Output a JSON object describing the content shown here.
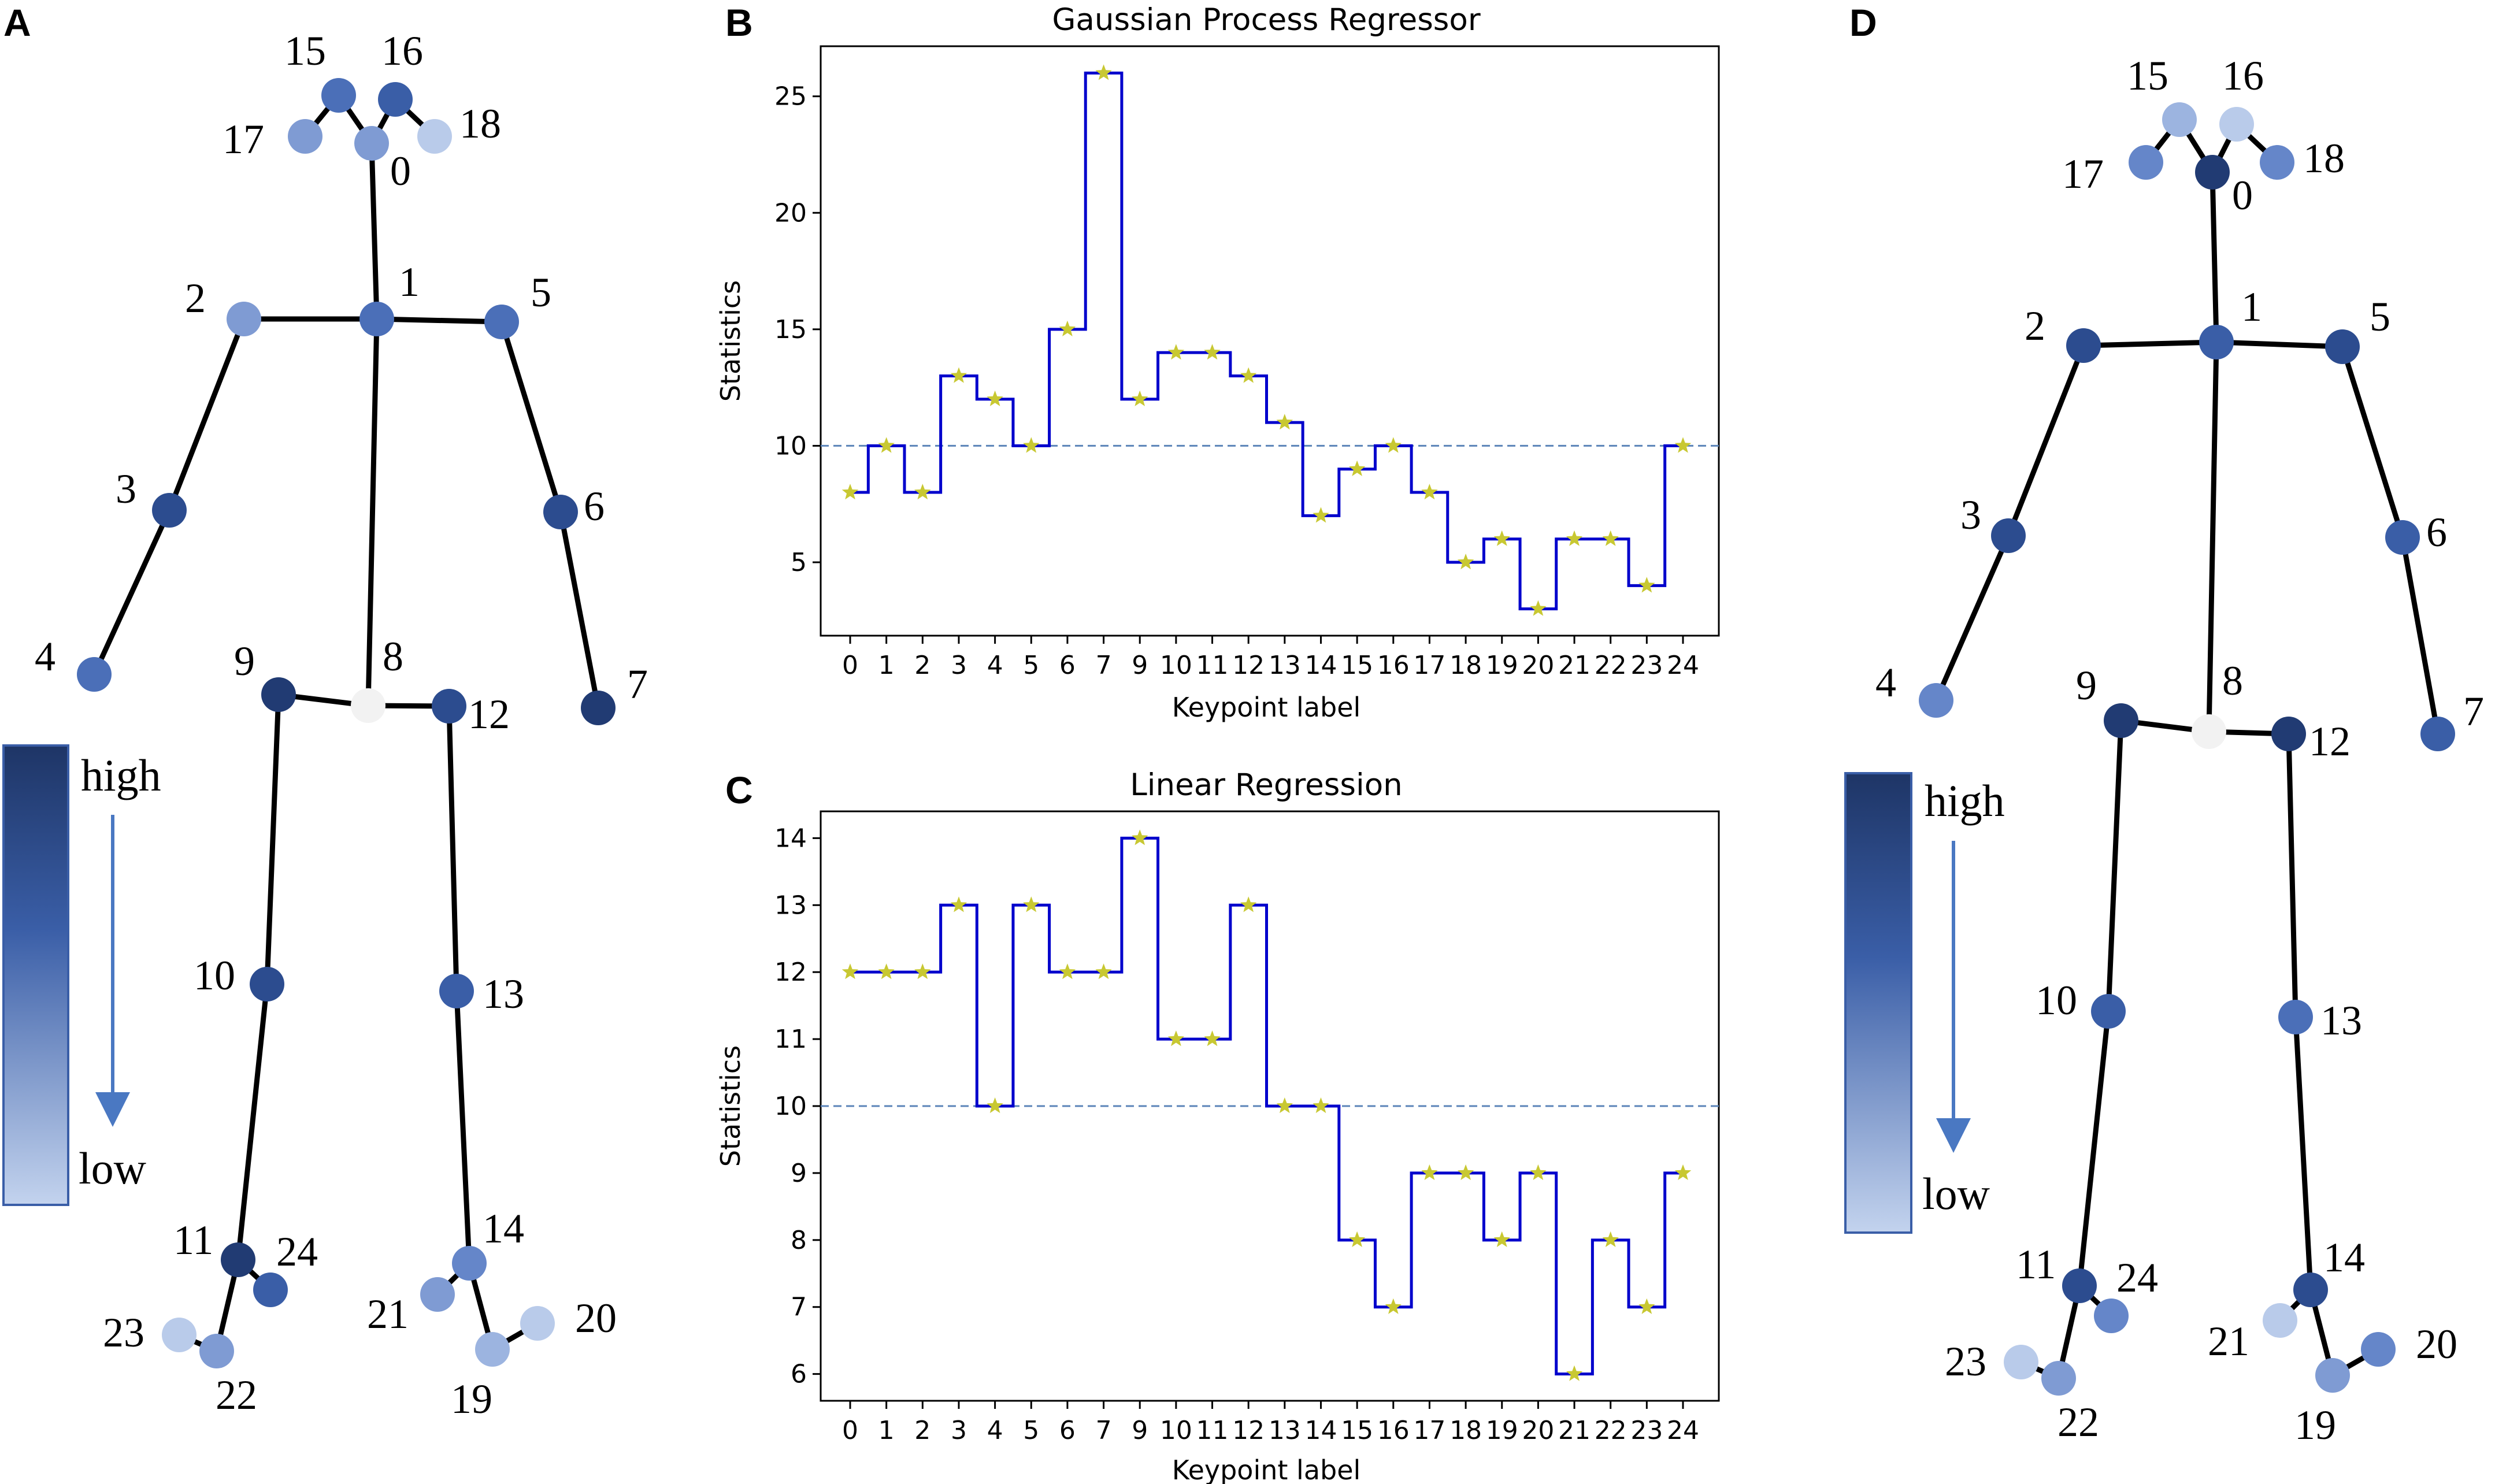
{
  "panels": {
    "a": "A",
    "b": "B",
    "c": "C",
    "d": "D"
  },
  "colors": {
    "scale": [
      "#f2f2f2",
      "#b9cbea",
      "#9cb4e0",
      "#7f9bd3",
      "#6586c9",
      "#4b6fb8",
      "#3a5ea7",
      "#2c4c8f",
      "#213b73",
      "#1c2f5e"
    ],
    "step_line": "#0000cc",
    "marker": "#c8c832",
    "reference_line": "#5b84b8"
  },
  "skeleton": {
    "bones": [
      [
        0,
        1
      ],
      [
        1,
        2
      ],
      [
        2,
        3
      ],
      [
        3,
        4
      ],
      [
        1,
        5
      ],
      [
        5,
        6
      ],
      [
        6,
        7
      ],
      [
        1,
        8
      ],
      [
        8,
        9
      ],
      [
        9,
        10
      ],
      [
        10,
        11
      ],
      [
        11,
        24
      ],
      [
        11,
        22
      ],
      [
        22,
        23
      ],
      [
        8,
        12
      ],
      [
        12,
        13
      ],
      [
        13,
        14
      ],
      [
        14,
        21
      ],
      [
        14,
        19
      ],
      [
        19,
        20
      ],
      [
        0,
        15
      ],
      [
        15,
        17
      ],
      [
        0,
        16
      ],
      [
        16,
        18
      ]
    ],
    "legend": {
      "high": "high",
      "low": "low"
    }
  },
  "skeleton_a": {
    "keypoints": [
      {
        "id": "0",
        "level": 3
      },
      {
        "id": "1",
        "level": 5
      },
      {
        "id": "2",
        "level": 3
      },
      {
        "id": "3",
        "level": 7
      },
      {
        "id": "4",
        "level": 5
      },
      {
        "id": "5",
        "level": 5
      },
      {
        "id": "6",
        "level": 7
      },
      {
        "id": "7",
        "level": 8
      },
      {
        "id": "8",
        "level": 0
      },
      {
        "id": "9",
        "level": 8
      },
      {
        "id": "10",
        "level": 7
      },
      {
        "id": "11",
        "level": 8
      },
      {
        "id": "12",
        "level": 7
      },
      {
        "id": "13",
        "level": 6
      },
      {
        "id": "14",
        "level": 4
      },
      {
        "id": "15",
        "level": 5
      },
      {
        "id": "16",
        "level": 6
      },
      {
        "id": "17",
        "level": 3
      },
      {
        "id": "18",
        "level": 1
      },
      {
        "id": "19",
        "level": 2
      },
      {
        "id": "20",
        "level": 1
      },
      {
        "id": "21",
        "level": 3
      },
      {
        "id": "22",
        "level": 3
      },
      {
        "id": "23",
        "level": 1
      },
      {
        "id": "24",
        "level": 6
      }
    ]
  },
  "skeleton_d": {
    "keypoints": [
      {
        "id": "0",
        "level": 8
      },
      {
        "id": "1",
        "level": 6
      },
      {
        "id": "2",
        "level": 7
      },
      {
        "id": "3",
        "level": 7
      },
      {
        "id": "4",
        "level": 4
      },
      {
        "id": "5",
        "level": 7
      },
      {
        "id": "6",
        "level": 6
      },
      {
        "id": "7",
        "level": 6
      },
      {
        "id": "8",
        "level": 0
      },
      {
        "id": "9",
        "level": 8
      },
      {
        "id": "10",
        "level": 6
      },
      {
        "id": "11",
        "level": 7
      },
      {
        "id": "12",
        "level": 8
      },
      {
        "id": "13",
        "level": 5
      },
      {
        "id": "14",
        "level": 7
      },
      {
        "id": "15",
        "level": 2
      },
      {
        "id": "16",
        "level": 1
      },
      {
        "id": "17",
        "level": 4
      },
      {
        "id": "18",
        "level": 4
      },
      {
        "id": "19",
        "level": 3
      },
      {
        "id": "20",
        "level": 4
      },
      {
        "id": "21",
        "level": 1
      },
      {
        "id": "22",
        "level": 3
      },
      {
        "id": "23",
        "level": 1
      },
      {
        "id": "24",
        "level": 4
      }
    ]
  },
  "chart_data": [
    {
      "type": "line",
      "title": "Gaussian Process Regressor",
      "xlabel": "Keypoint label",
      "ylabel": "Statistics",
      "categories": [
        "0",
        "1",
        "2",
        "3",
        "4",
        "5",
        "6",
        "7",
        "9",
        "10",
        "11",
        "12",
        "13",
        "14",
        "15",
        "16",
        "17",
        "18",
        "19",
        "20",
        "21",
        "22",
        "23",
        "24"
      ],
      "values": [
        8,
        10,
        8,
        13,
        12,
        10,
        15,
        26,
        12,
        14,
        14,
        13,
        11,
        7,
        9,
        10,
        8,
        5,
        6,
        3,
        6,
        6,
        4,
        10
      ],
      "ylim": [
        1.85,
        27.15
      ],
      "yticks": [
        5,
        10,
        15,
        20,
        25
      ],
      "reference_line": 10,
      "drawstyle": "steps-mid",
      "marker": "star",
      "grid": false
    },
    {
      "type": "line",
      "title": "Linear Regression",
      "xlabel": "Keypoint label",
      "ylabel": "Statistics",
      "categories": [
        "0",
        "1",
        "2",
        "3",
        "4",
        "5",
        "6",
        "7",
        "9",
        "10",
        "11",
        "12",
        "13",
        "14",
        "15",
        "16",
        "17",
        "18",
        "19",
        "20",
        "21",
        "22",
        "23",
        "24"
      ],
      "values": [
        12,
        12,
        12,
        13,
        10,
        13,
        12,
        12,
        14,
        11,
        11,
        13,
        10,
        10,
        8,
        7,
        9,
        9,
        8,
        9,
        6,
        8,
        7,
        9
      ],
      "ylim": [
        5.6,
        14.4
      ],
      "yticks": [
        6,
        7,
        8,
        9,
        10,
        11,
        12,
        13,
        14
      ],
      "reference_line": 10,
      "drawstyle": "steps-mid",
      "marker": "star",
      "grid": false
    }
  ]
}
